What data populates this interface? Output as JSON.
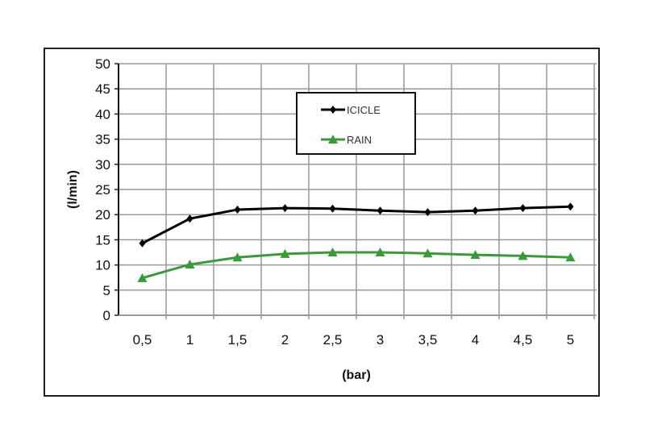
{
  "chart_data": {
    "type": "line",
    "title": "",
    "xlabel": "(bar)",
    "ylabel": "(l/min)",
    "categories": [
      "0,5",
      "1",
      "1,5",
      "2",
      "2,5",
      "3",
      "3,5",
      "4",
      "4,5",
      "5"
    ],
    "ylim": [
      0,
      50
    ],
    "yticks": [
      0,
      5,
      10,
      15,
      20,
      25,
      30,
      35,
      40,
      45,
      50
    ],
    "grid": true,
    "legend": "top-center",
    "series": [
      {
        "name": "ICICLE",
        "color": "#000000",
        "marker": "diamond",
        "values": [
          14.3,
          19.2,
          21.0,
          21.3,
          21.2,
          20.8,
          20.5,
          20.8,
          21.3,
          21.6
        ]
      },
      {
        "name": "RAIN",
        "color": "#3a9a3a",
        "marker": "triangle",
        "values": [
          7.4,
          10.1,
          11.5,
          12.2,
          12.5,
          12.5,
          12.3,
          12.0,
          11.8,
          11.5
        ]
      }
    ]
  }
}
